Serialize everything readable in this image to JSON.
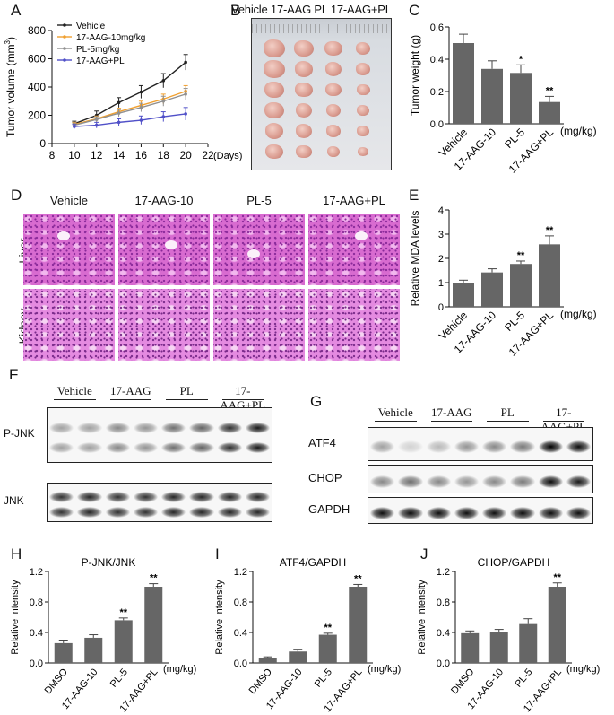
{
  "panels": {
    "A": {
      "letter": "A",
      "legend": [
        "Vehicle",
        "17-AAG-10mg/kg",
        "PL-5mg/kg",
        "17-AAG+PL"
      ],
      "ylabel_main": "Tumor volume (mm",
      "ylabel_sup": "3",
      "ylabel_close": ")",
      "x_unit": "(Days)"
    },
    "B": {
      "letter": "B",
      "title": "Vehicle 17-AAG PL 17-AAG+PL",
      "rows": 6,
      "cols": 4
    },
    "C": {
      "letter": "C",
      "ylabel": "Tumor weight (g)",
      "unit": "(mg/kg)"
    },
    "D": {
      "letter": "D",
      "columns": [
        "Vehicle",
        "17-AAG-10",
        "PL-5",
        "17-AAG+PL"
      ],
      "rows": [
        "Liver",
        "Kidney"
      ]
    },
    "E": {
      "letter": "E",
      "ylabel": "Relative MDA levels",
      "unit": "(mg/kg)"
    },
    "F": {
      "letter": "F",
      "lanes": [
        "Vehicle",
        "17-AAG",
        "PL",
        "17-AAG+PL"
      ],
      "rows": [
        "P-JNK",
        "JNK"
      ]
    },
    "G": {
      "letter": "G",
      "lanes": [
        "Vehicle",
        "17-AAG",
        "PL",
        "17-AAG+PL"
      ],
      "rows": [
        "ATF4",
        "CHOP",
        "GAPDH"
      ]
    },
    "H": {
      "letter": "H",
      "title": "P-JNK/JNK",
      "ylabel": "Relative intensity",
      "unit": "(mg/kg)"
    },
    "I": {
      "letter": "I",
      "title": "ATF4/GAPDH",
      "ylabel": "Relative intensity",
      "unit": "(mg/kg)"
    },
    "J": {
      "letter": "J",
      "title": "CHOP/GAPDH",
      "ylabel": "Relative intensity",
      "unit": "(mg/kg)"
    }
  },
  "chart_data": [
    {
      "id": "A",
      "type": "line",
      "x": [
        10,
        12,
        14,
        16,
        18,
        20
      ],
      "xticks": [
        8,
        10,
        12,
        14,
        16,
        18,
        20,
        22
      ],
      "xlim": [
        8,
        22
      ],
      "ylim": [
        0,
        800
      ],
      "yticks": [
        0,
        200,
        400,
        600,
        800
      ],
      "colors": [
        "#222222",
        "#f0a030",
        "#909090",
        "#5050c8"
      ],
      "series": [
        {
          "name": "Vehicle",
          "values": [
            140,
            200,
            290,
            365,
            445,
            575
          ],
          "err": [
            18,
            30,
            35,
            45,
            50,
            55
          ]
        },
        {
          "name": "17-AAG-10mg/kg",
          "values": [
            135,
            175,
            225,
            270,
            315,
            370
          ],
          "err": [
            15,
            20,
            25,
            30,
            35,
            40
          ]
        },
        {
          "name": "PL-5mg/kg",
          "values": [
            130,
            170,
            215,
            255,
            300,
            350
          ],
          "err": [
            15,
            20,
            25,
            30,
            35,
            40
          ]
        },
        {
          "name": "17-AAG+PL",
          "values": [
            120,
            130,
            150,
            165,
            190,
            210
          ],
          "err": [
            15,
            20,
            25,
            30,
            35,
            45
          ]
        }
      ]
    },
    {
      "id": "C",
      "type": "bar",
      "categories": [
        "Vehicle",
        "17-AAG-10",
        "PL-5",
        "17-AAG+PL"
      ],
      "values": [
        0.5,
        0.34,
        0.315,
        0.135
      ],
      "err": [
        0.055,
        0.05,
        0.05,
        0.035
      ],
      "sig": [
        "",
        "",
        "*",
        "**"
      ],
      "ylim": [
        0,
        0.6
      ],
      "yticks": [
        0.0,
        0.2,
        0.4,
        0.6
      ],
      "tick_labels": [
        "0.0",
        "0.2",
        "0.4",
        "0.6"
      ]
    },
    {
      "id": "E",
      "type": "bar",
      "categories": [
        "Vehicle",
        "17-AAG-10",
        "PL-5",
        "17-AAG+PL"
      ],
      "values": [
        1.0,
        1.42,
        1.77,
        2.58
      ],
      "err": [
        0.1,
        0.15,
        0.12,
        0.35
      ],
      "sig": [
        "",
        "",
        "**",
        "**"
      ],
      "ylim": [
        0,
        4
      ],
      "yticks": [
        0,
        1,
        2,
        3,
        4
      ],
      "tick_labels": [
        "0",
        "1",
        "2",
        "3",
        "4"
      ]
    },
    {
      "id": "H",
      "type": "bar",
      "categories": [
        "DMSO",
        "17-AAG-10",
        "PL-5",
        "17-AAG+PL"
      ],
      "values": [
        0.26,
        0.33,
        0.56,
        1.0
      ],
      "err": [
        0.04,
        0.04,
        0.03,
        0.04
      ],
      "sig": [
        "",
        "",
        "**",
        "**"
      ],
      "ylim": [
        0,
        1.2
      ],
      "yticks": [
        0.0,
        0.4,
        0.8,
        1.2
      ],
      "tick_labels": [
        "0.0",
        "0.4",
        "0.8",
        "1.2"
      ]
    },
    {
      "id": "I",
      "type": "bar",
      "categories": [
        "DMSO",
        "17-AAG-10",
        "PL-5",
        "17-AAG+PL"
      ],
      "values": [
        0.06,
        0.15,
        0.37,
        1.0
      ],
      "err": [
        0.02,
        0.03,
        0.02,
        0.03
      ],
      "sig": [
        "",
        "",
        "**",
        "**"
      ],
      "ylim": [
        0,
        1.2
      ],
      "yticks": [
        0.0,
        0.4,
        0.8,
        1.2
      ],
      "tick_labels": [
        "0.0",
        "0.4",
        "0.8",
        "1.2"
      ]
    },
    {
      "id": "J",
      "type": "bar",
      "categories": [
        "DMSO",
        "17-AAG-10",
        "PL-5",
        "17-AAG+PL"
      ],
      "values": [
        0.39,
        0.41,
        0.51,
        1.0
      ],
      "err": [
        0.03,
        0.03,
        0.07,
        0.05
      ],
      "sig": [
        "",
        "",
        "",
        "**"
      ],
      "ylim": [
        0,
        1.2
      ],
      "yticks": [
        0.0,
        0.4,
        0.8,
        1.2
      ],
      "tick_labels": [
        "0.0",
        "0.4",
        "0.8",
        "1.2"
      ]
    }
  ]
}
